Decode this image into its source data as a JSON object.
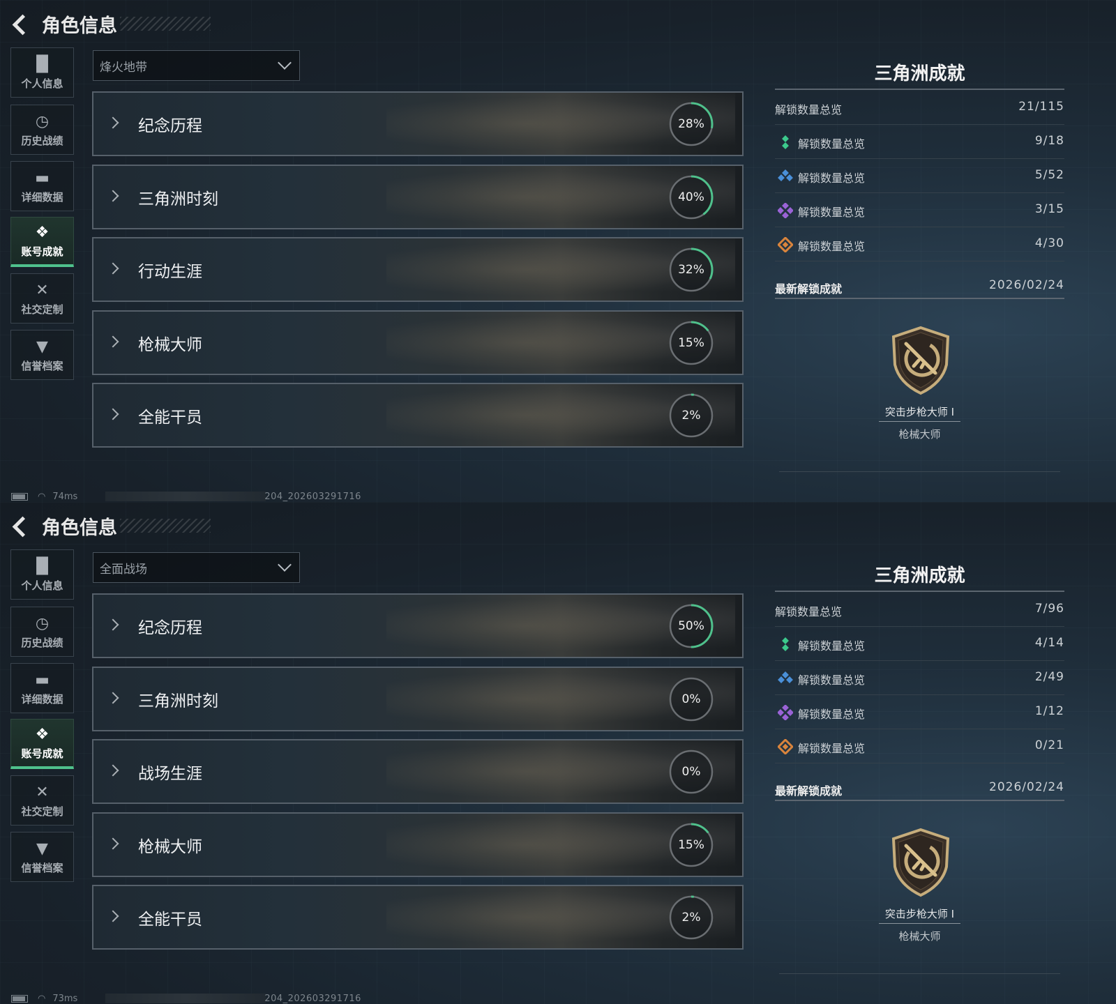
{
  "header": {
    "title": "角色信息"
  },
  "sidebar": {
    "items": [
      {
        "label": "个人信息",
        "icon": "bar-chart-icon"
      },
      {
        "label": "历史战绩",
        "icon": "history-clock-icon"
      },
      {
        "label": "详细数据",
        "icon": "folder-icon"
      },
      {
        "label": "账号成就",
        "icon": "achievement-medal-icon",
        "active": true
      },
      {
        "label": "社交定制",
        "icon": "tools-icon"
      },
      {
        "label": "信誉档案",
        "icon": "shield-lightning-icon"
      }
    ]
  },
  "colors": {
    "accent": "#4fc18c",
    "ring_track": "#6a6e72",
    "tier1": "#3cc98c",
    "tier2": "#4a90d9",
    "tier3": "#9a63d6",
    "tier4": "#d9843c"
  },
  "panels": [
    {
      "mode": "烽火地带",
      "rows": [
        {
          "index": "001",
          "name": "纪念历程",
          "percent": 28
        },
        {
          "index": "002",
          "name": "三角洲时刻",
          "percent": 40
        },
        {
          "index": "003",
          "name": "行动生涯",
          "percent": 32
        },
        {
          "index": "004",
          "name": "枪械大师",
          "percent": 15
        },
        {
          "index": "005",
          "name": "全能干员",
          "percent": 2
        }
      ],
      "right": {
        "title": "三角洲成就",
        "summary": {
          "label": "解锁数量总览",
          "value": "21/115"
        },
        "tiers": [
          {
            "label": "解锁数量总览",
            "value": "9/18"
          },
          {
            "label": "解锁数量总览",
            "value": "5/52"
          },
          {
            "label": "解锁数量总览",
            "value": "3/15"
          },
          {
            "label": "解锁数量总览",
            "value": "4/30"
          }
        ],
        "latest_label": "最新解锁成就",
        "latest_date": "2026/02/24",
        "badge": {
          "name": "突击步枪大师 I",
          "category": "枪械大师"
        }
      },
      "status": {
        "ping": "74ms",
        "id": "204_202603291716"
      }
    },
    {
      "mode": "全面战场",
      "rows": [
        {
          "index": "001",
          "name": "纪念历程",
          "percent": 50
        },
        {
          "index": "002",
          "name": "三角洲时刻",
          "percent": 0
        },
        {
          "index": "003",
          "name": "战场生涯",
          "percent": 0
        },
        {
          "index": "004",
          "name": "枪械大师",
          "percent": 15
        },
        {
          "index": "005",
          "name": "全能干员",
          "percent": 2
        }
      ],
      "right": {
        "title": "三角洲成就",
        "summary": {
          "label": "解锁数量总览",
          "value": "7/96"
        },
        "tiers": [
          {
            "label": "解锁数量总览",
            "value": "4/14"
          },
          {
            "label": "解锁数量总览",
            "value": "2/49"
          },
          {
            "label": "解锁数量总览",
            "value": "1/12"
          },
          {
            "label": "解锁数量总览",
            "value": "0/21"
          }
        ],
        "latest_label": "最新解锁成就",
        "latest_date": "2026/02/24",
        "badge": {
          "name": "突击步枪大师 I",
          "category": "枪械大师"
        }
      },
      "status": {
        "ping": "73ms",
        "id": "204_202603291716"
      }
    }
  ]
}
